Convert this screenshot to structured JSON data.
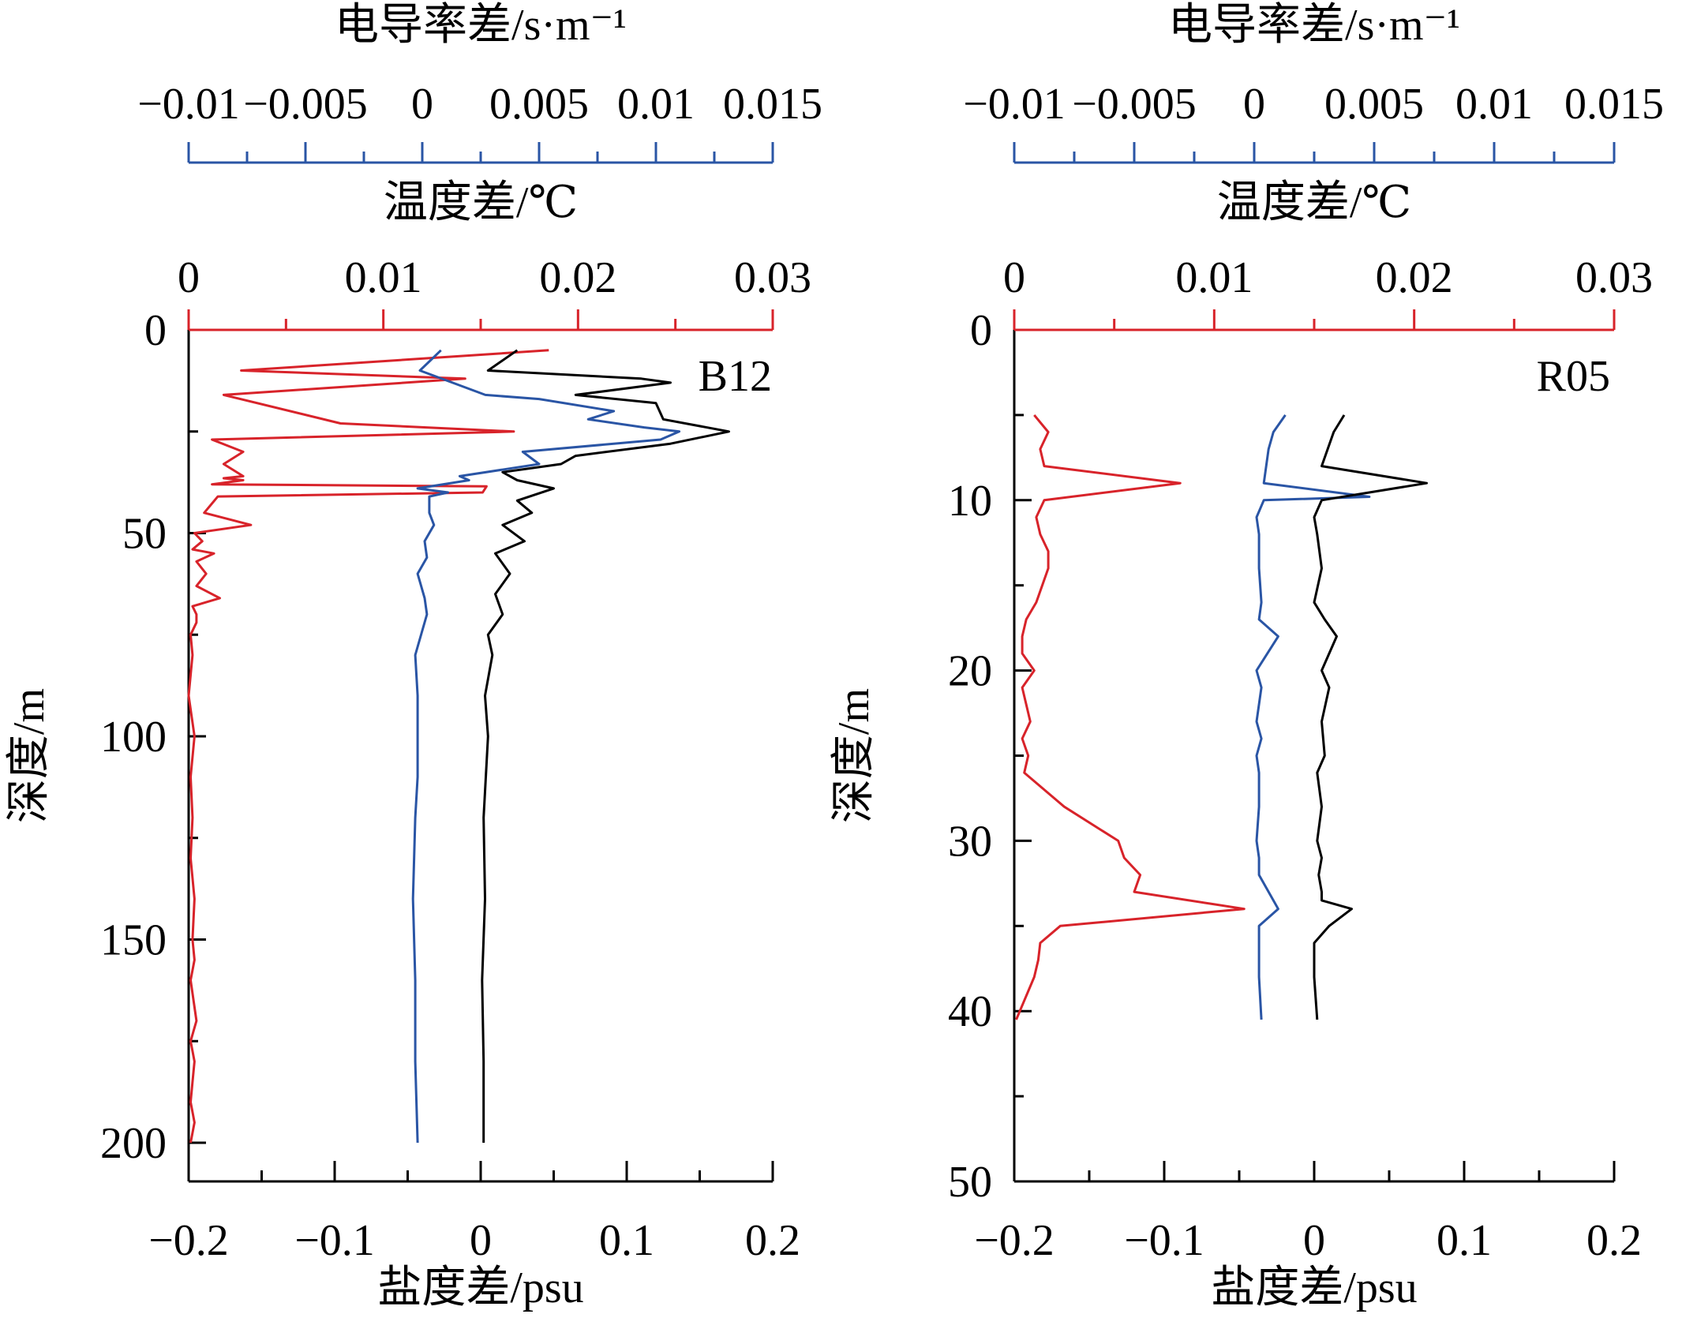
{
  "colors": {
    "temperature": "#d8232a",
    "conductivity": "#2a55a5",
    "salinity": "#000000",
    "frame": "#000000"
  },
  "chart_data": [
    {
      "type": "line",
      "panel_label": "B12",
      "y_axis": {
        "label": "深度/m",
        "range": [
          0,
          210
        ],
        "inverted": true,
        "ticks": [
          0,
          50,
          100,
          150,
          200
        ],
        "tick_labels": [
          "0",
          "50",
          "100",
          "150",
          "200"
        ]
      },
      "axes": [
        {
          "id": "conductivity",
          "position": "top-outer",
          "label": "电导率差/s·m⁻¹",
          "range": [
            -0.01,
            0.015
          ],
          "ticks": [
            -0.01,
            -0.005,
            0,
            0.005,
            0.01,
            0.015
          ],
          "tick_labels": [
            "−0.01",
            "−0.005",
            "0",
            "0.005",
            "0.01",
            "0.015"
          ]
        },
        {
          "id": "temperature",
          "position": "top-inner",
          "label": "温度差/℃",
          "range": [
            0,
            0.03
          ],
          "ticks": [
            0,
            0.01,
            0.02,
            0.03
          ],
          "tick_labels": [
            "0",
            "0.01",
            "0.02",
            "0.03"
          ]
        },
        {
          "id": "salinity",
          "position": "bottom",
          "label": "盐度差/psu",
          "range": [
            -0.2,
            0.2
          ],
          "ticks": [
            -0.2,
            -0.1,
            0,
            0.1,
            0.2
          ],
          "tick_labels": [
            "−0.2",
            "−0.1",
            "0",
            "0.1",
            "0.2"
          ]
        }
      ],
      "series": [
        {
          "axis": "temperature",
          "color": "#d8232a",
          "x": [
            0.0185,
            0.0027,
            0.0142,
            0.0018,
            0.0078,
            0.0167,
            0.0012,
            0.0028,
            0.0018,
            0.0028,
            0.0018,
            0.0028,
            0.0012,
            0.0153,
            0.0151,
            0.0015,
            0.0008,
            0.0032,
            0.0003,
            0.0007,
            0.0002,
            0.0013,
            0.0004,
            0.0009,
            0.0004,
            0.0016,
            0.0002,
            0.0004,
            0.0004,
            0.0001,
            0.0002,
            0.0,
            0.0003,
            0.0001,
            0.0002,
            0.0001,
            0.0003,
            0.0002,
            0.0003,
            0.0001,
            0.0004,
            0.0001,
            0.0003,
            0.0002,
            0.0001,
            0.0003,
            0.0001
          ],
          "y": [
            5,
            10,
            12,
            16,
            23,
            25,
            27,
            30,
            33,
            36,
            36.5,
            37,
            38,
            38.5,
            40,
            41,
            45,
            48,
            50,
            52,
            54,
            55,
            57,
            60,
            63,
            66,
            68,
            70,
            72,
            75,
            80,
            90,
            100,
            110,
            120,
            130,
            140,
            150,
            155,
            160,
            170,
            175,
            180,
            185,
            190,
            195,
            200
          ]
        },
        {
          "axis": "conductivity",
          "color": "#2a55a5",
          "x": [
            0.0008,
            -0.0001,
            0.0027,
            0.005,
            0.0082,
            0.0071,
            0.0095,
            0.011,
            0.0102,
            0.0043,
            0.005,
            0.0016,
            0.002,
            -0.0002,
            0.0011,
            0.0003,
            0.0003,
            0.0005,
            0.0001,
            0.0002,
            -0.0002,
            0.0001,
            0.0002,
            -0.0003,
            -0.0002,
            -0.0002,
            -0.0002,
            -0.0003,
            -0.0004,
            -0.0003,
            -0.0003,
            -0.0002
          ],
          "y": [
            5,
            10,
            16,
            17,
            20,
            22,
            24,
            25,
            27,
            30,
            33,
            36,
            37,
            39,
            40,
            41,
            45,
            48,
            52,
            56,
            60,
            66,
            70,
            80,
            90,
            100,
            110,
            120,
            140,
            160,
            180,
            200
          ]
        },
        {
          "axis": "salinity",
          "color": "#000000",
          "x": [
            0.025,
            0.005,
            0.11,
            0.13,
            0.065,
            0.12,
            0.125,
            0.17,
            0.13,
            0.065,
            0.055,
            0.015,
            0.025,
            0.05,
            0.025,
            0.035,
            0.015,
            0.03,
            0.01,
            0.02,
            0.01,
            0.015,
            0.005,
            0.008,
            0.003,
            0.005,
            0.002,
            0.003,
            0.001,
            0.002,
            0.002
          ],
          "y": [
            5,
            10,
            12,
            13,
            16,
            18,
            22,
            25,
            28,
            31,
            33,
            35,
            37,
            39,
            42,
            45,
            48,
            52,
            55,
            60,
            65,
            70,
            75,
            80,
            90,
            100,
            120,
            140,
            160,
            180,
            200
          ]
        }
      ]
    },
    {
      "type": "line",
      "panel_label": "R05",
      "y_axis": {
        "label": "深度/m",
        "range": [
          0,
          50
        ],
        "inverted": true,
        "ticks": [
          0,
          10,
          20,
          30,
          40,
          50
        ],
        "tick_labels": [
          "0",
          "10",
          "20",
          "30",
          "40",
          "50"
        ]
      },
      "axes": [
        {
          "id": "conductivity",
          "position": "top-outer",
          "label": "电导率差/s·m⁻¹",
          "range": [
            -0.01,
            0.015
          ],
          "ticks": [
            -0.01,
            -0.005,
            0,
            0.005,
            0.01,
            0.015
          ],
          "tick_labels": [
            "−0.01",
            "−0.005",
            "0",
            "0.005",
            "0.01",
            "0.015"
          ]
        },
        {
          "axis_note": "",
          "id": "temperature",
          "position": "top-inner",
          "label": "温度差/℃",
          "range": [
            0,
            0.03
          ],
          "ticks": [
            0,
            0.01,
            0.02,
            0.03
          ],
          "tick_labels": [
            "0",
            "0.01",
            "0.02",
            "0.03"
          ]
        },
        {
          "id": "salinity",
          "position": "bottom",
          "label": "盐度差/psu",
          "range": [
            -0.2,
            0.2
          ],
          "ticks": [
            -0.2,
            -0.1,
            0,
            0.1,
            0.2
          ],
          "tick_labels": [
            "−0.2",
            "−0.1",
            "0",
            "0.1",
            "0.2"
          ]
        }
      ],
      "series": [
        {
          "axis": "temperature",
          "color": "#d8232a",
          "x": [
            0.001,
            0.0017,
            0.0013,
            0.0015,
            0.0083,
            0.0015,
            0.0011,
            0.0013,
            0.0017,
            0.0017,
            0.0011,
            0.0006,
            0.0004,
            0.0004,
            0.001,
            0.0004,
            0.0008,
            0.0004,
            0.0007,
            0.0005,
            0.0025,
            0.0052,
            0.0055,
            0.0063,
            0.006,
            0.0115,
            0.0023,
            0.0013,
            0.0012,
            0.001,
            0.0001
          ],
          "y": [
            5,
            6,
            7,
            8,
            9,
            10,
            11,
            12,
            13,
            14,
            16,
            17,
            18,
            19,
            20,
            21,
            23,
            24,
            25,
            26,
            28,
            30,
            31,
            32,
            33,
            34,
            35,
            36,
            37,
            38,
            40.5
          ]
        },
        {
          "axis": "conductivity",
          "color": "#2a55a5",
          "x": [
            0.0013,
            0.0008,
            0.0006,
            0.0005,
            0.0004,
            0.0048,
            0.0004,
            0.0001,
            0.0002,
            0.0002,
            0.0003,
            0.0002,
            0.001,
            0.0001,
            0.0003,
            0.0001,
            0.0003,
            0.0001,
            0.0002,
            0.0002,
            0.0001,
            0.0002,
            0.0002,
            0.001,
            0.0002,
            0.0002,
            0.0002,
            0.0003
          ],
          "y": [
            5,
            6,
            7,
            8,
            9,
            9.8,
            10,
            11,
            12,
            14,
            16,
            17,
            18,
            20,
            21,
            23,
            24,
            25,
            26,
            28,
            30,
            31,
            32,
            34,
            35,
            36,
            38,
            40.5
          ]
        },
        {
          "axis": "salinity",
          "color": "#000000",
          "x": [
            0.02,
            0.013,
            0.005,
            0.075,
            0.005,
            0.0,
            0.002,
            0.005,
            0.0,
            0.007,
            0.015,
            0.005,
            0.01,
            0.005,
            0.007,
            0.002,
            0.005,
            0.002,
            0.005,
            0.003,
            0.005,
            0.005,
            0.025,
            0.01,
            0.0,
            0.0,
            0.002
          ],
          "y": [
            5,
            6,
            8,
            9,
            10,
            11,
            12,
            14,
            16,
            17,
            18,
            20,
            21,
            23,
            25,
            26,
            28,
            30,
            31,
            32,
            33,
            33.5,
            34,
            35,
            36,
            38,
            40.5
          ]
        }
      ]
    }
  ]
}
